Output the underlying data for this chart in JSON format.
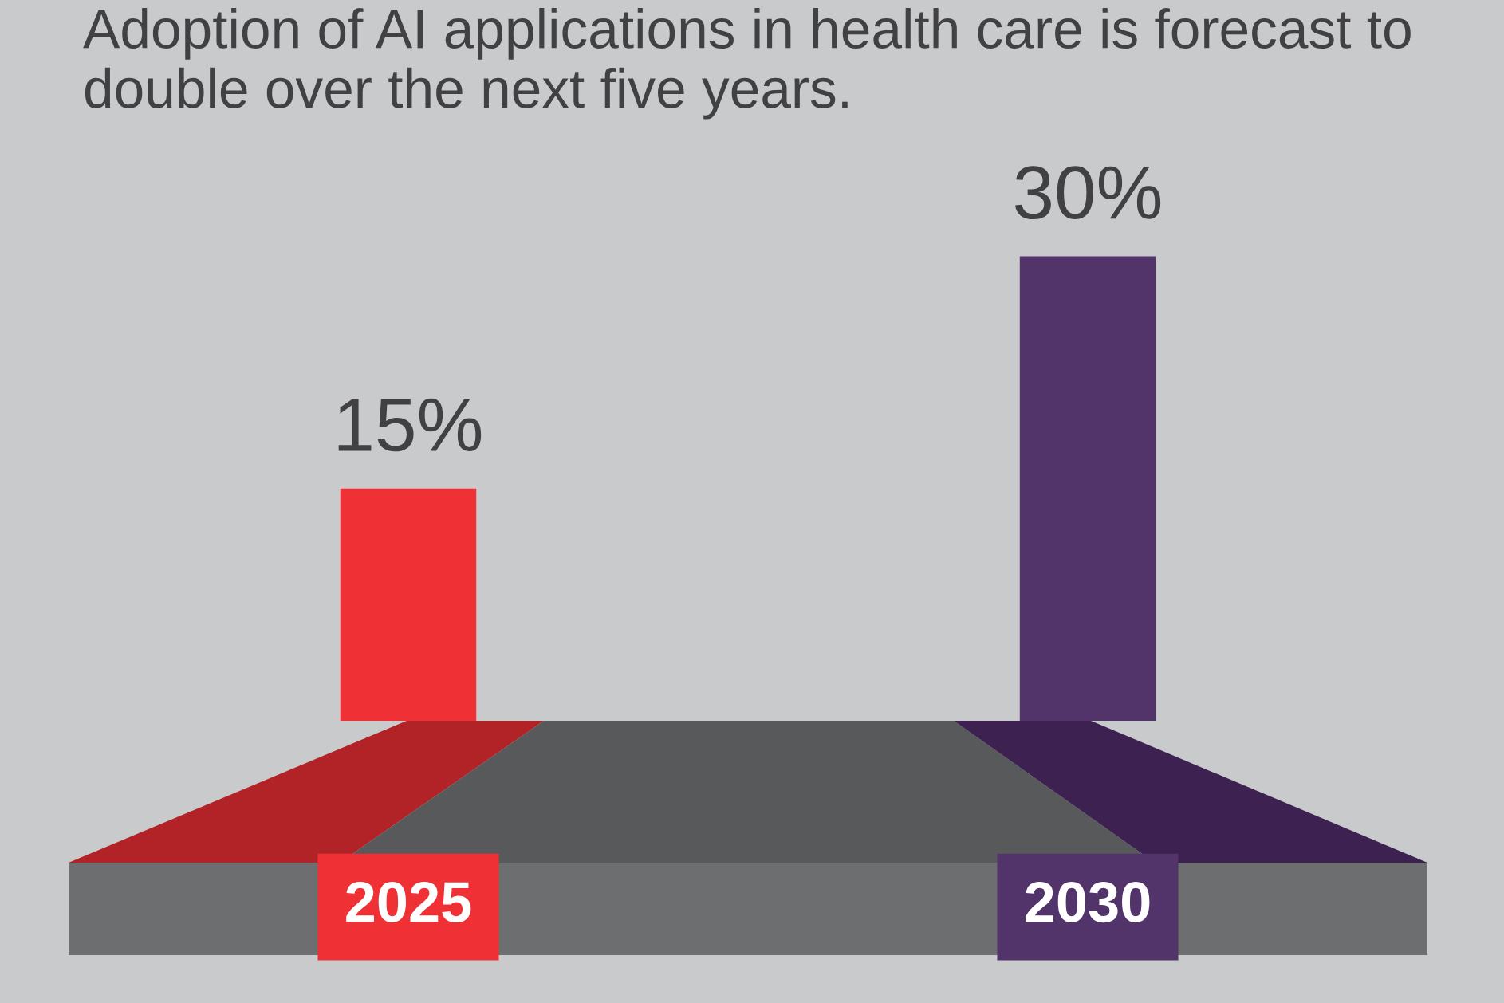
{
  "chart_data": {
    "type": "bar",
    "title": "Adoption of AI applications in health care is forecast to double over the next five years.",
    "categories": [
      "2025",
      "2030"
    ],
    "values": [
      15,
      30
    ],
    "colors": [
      "#ef3136",
      "#52346b"
    ],
    "value_labels": [
      "15%",
      "30%"
    ],
    "grid": false,
    "tick_labels": "x"
  }
}
